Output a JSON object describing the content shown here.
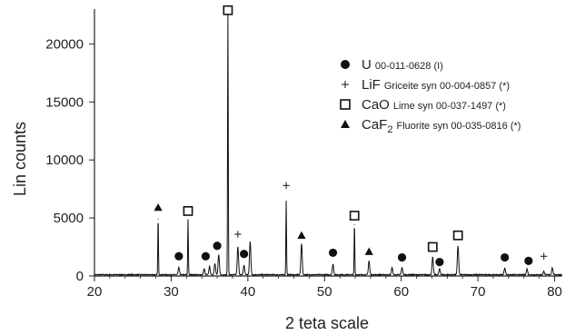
{
  "chart_data": {
    "type": "line",
    "xlabel": "2 teta scale",
    "ylabel": "Lin counts",
    "xlim": [
      20,
      81
    ],
    "ylim": [
      0,
      23000
    ],
    "x_ticks": [
      20,
      30,
      40,
      50,
      60,
      70,
      80
    ],
    "y_ticks": [
      0,
      5000,
      10000,
      15000,
      20000
    ],
    "grid": false,
    "legend_position": "top-right",
    "colors": {
      "line": "#111111",
      "marker": "#111111",
      "axis": "#222222"
    },
    "peaks": [
      {
        "x": 28.3,
        "y": 4900
      },
      {
        "x": 31.0,
        "y": 600
      },
      {
        "x": 32.2,
        "y": 4800
      },
      {
        "x": 34.3,
        "y": 500
      },
      {
        "x": 35.0,
        "y": 700
      },
      {
        "x": 35.7,
        "y": 1000
      },
      {
        "x": 36.2,
        "y": 1700
      },
      {
        "x": 37.4,
        "y": 22700
      },
      {
        "x": 38.7,
        "y": 2400
      },
      {
        "x": 39.5,
        "y": 800
      },
      {
        "x": 40.3,
        "y": 2900
      },
      {
        "x": 45.0,
        "y": 6400
      },
      {
        "x": 47.0,
        "y": 2700
      },
      {
        "x": 51.1,
        "y": 900
      },
      {
        "x": 53.9,
        "y": 4400
      },
      {
        "x": 55.8,
        "y": 1200
      },
      {
        "x": 58.8,
        "y": 600
      },
      {
        "x": 60.1,
        "y": 600
      },
      {
        "x": 64.1,
        "y": 1500
      },
      {
        "x": 65.0,
        "y": 500
      },
      {
        "x": 67.4,
        "y": 2500
      },
      {
        "x": 73.5,
        "y": 600
      },
      {
        "x": 76.4,
        "y": 500
      },
      {
        "x": 78.6,
        "y": 300
      },
      {
        "x": 79.7,
        "y": 600
      }
    ],
    "markers": [
      {
        "x": 28.3,
        "y": 5900,
        "symbol": "triangle"
      },
      {
        "x": 31.0,
        "y": 1700,
        "symbol": "circle"
      },
      {
        "x": 32.2,
        "y": 5600,
        "symbol": "square"
      },
      {
        "x": 34.5,
        "y": 1700,
        "symbol": "circle"
      },
      {
        "x": 36.0,
        "y": 2600,
        "symbol": "circle"
      },
      {
        "x": 37.4,
        "y": 22900,
        "symbol": "square"
      },
      {
        "x": 38.7,
        "y": 3600,
        "symbol": "plus"
      },
      {
        "x": 39.5,
        "y": 1900,
        "symbol": "circle"
      },
      {
        "x": 45.0,
        "y": 7800,
        "symbol": "plus"
      },
      {
        "x": 47.0,
        "y": 3500,
        "symbol": "triangle"
      },
      {
        "x": 51.1,
        "y": 2000,
        "symbol": "circle"
      },
      {
        "x": 53.9,
        "y": 5200,
        "symbol": "square"
      },
      {
        "x": 55.8,
        "y": 2100,
        "symbol": "triangle"
      },
      {
        "x": 60.1,
        "y": 1600,
        "symbol": "circle"
      },
      {
        "x": 64.1,
        "y": 2500,
        "symbol": "square"
      },
      {
        "x": 65.0,
        "y": 1200,
        "symbol": "circle"
      },
      {
        "x": 67.4,
        "y": 3500,
        "symbol": "square"
      },
      {
        "x": 73.5,
        "y": 1600,
        "symbol": "circle"
      },
      {
        "x": 76.6,
        "y": 1300,
        "symbol": "circle"
      },
      {
        "x": 78.6,
        "y": 1700,
        "symbol": "plus"
      }
    ],
    "legend": [
      {
        "symbol": "circle",
        "main": "U",
        "sub_before": "",
        "sub_after": "",
        "desc": "00-011-0628 (I)"
      },
      {
        "symbol": "plus",
        "main": "LiF",
        "sub_before": "",
        "sub_after": "",
        "desc": "Griceite syn 00-004-0857 (*)"
      },
      {
        "symbol": "square",
        "main": "CaO",
        "sub_before": "",
        "sub_after": "",
        "desc": "Lime syn 00-037-1497 (*)"
      },
      {
        "symbol": "triangle",
        "main": "CaF",
        "sub_before": "2",
        "sub_after": "",
        "desc": "Fluorite syn 00-035-0816 (*)"
      }
    ]
  }
}
